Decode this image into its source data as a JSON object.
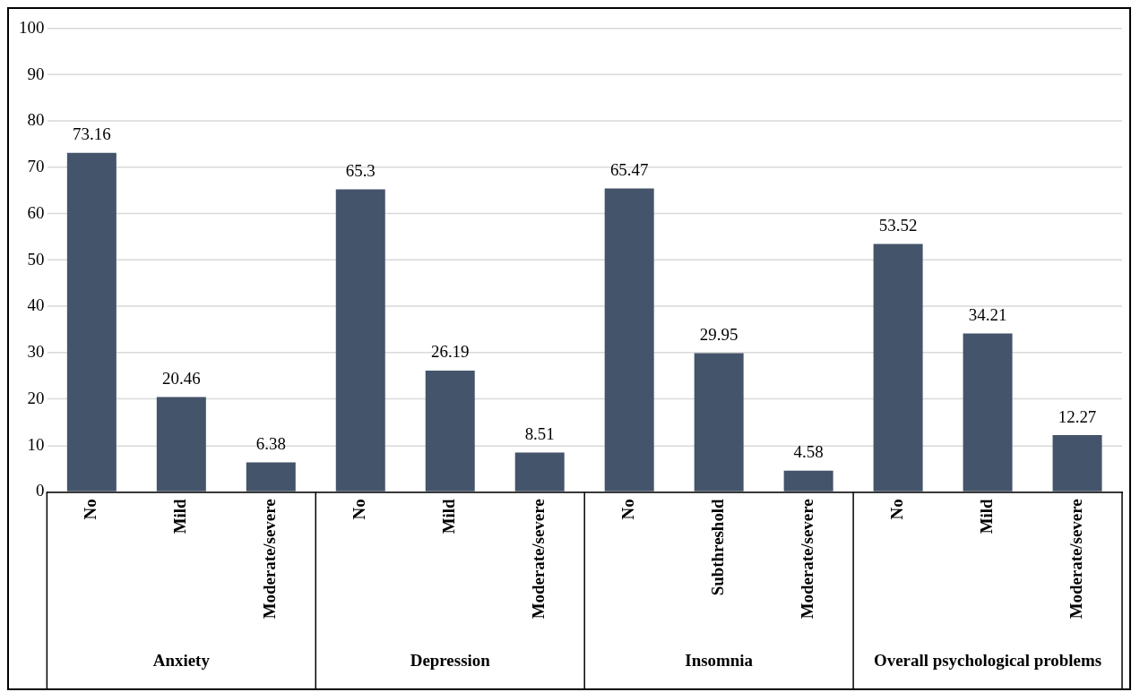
{
  "chart_data": {
    "type": "bar",
    "categories": [
      "No",
      "Mild",
      "Moderate/severe",
      "No",
      "Mild",
      "Moderate/severe",
      "No",
      "Subthreshold",
      "Moderate/severe",
      "No",
      "Mild",
      "Moderate/severe"
    ],
    "values": [
      73.16,
      20.46,
      6.38,
      65.3,
      26.19,
      8.51,
      65.47,
      29.95,
      4.58,
      53.52,
      34.21,
      12.27
    ],
    "color": "#44546a",
    "ylim": [
      0,
      100
    ],
    "yticks": [
      0,
      10,
      20,
      30,
      40,
      50,
      60,
      70,
      80,
      90,
      100
    ],
    "grid": "y",
    "data_labels": true,
    "legend": false,
    "annotations": [
      "Anxiety",
      "Depression",
      "Insomnia",
      "Overall psychological problems"
    ]
  }
}
